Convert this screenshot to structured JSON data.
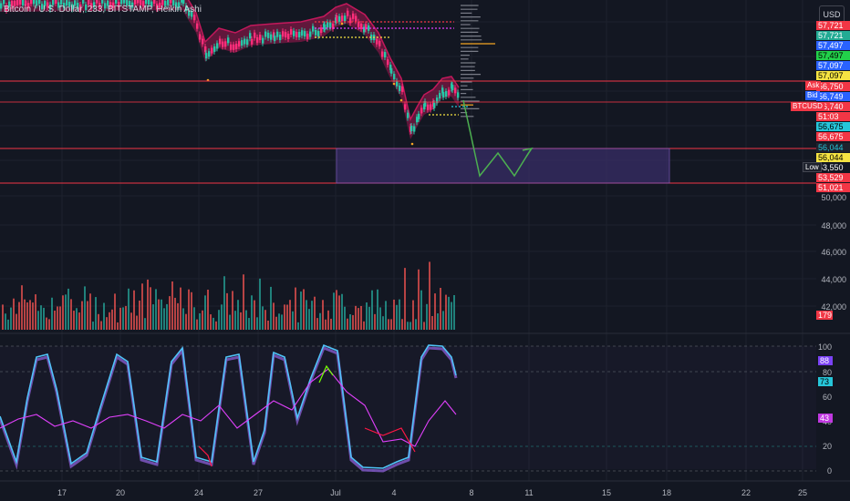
{
  "header": {
    "symbol_title": "Bitcoin / U.S. Dollar, 233, BITSTAMP, Heikin Ashi",
    "currency_button": "USD"
  },
  "price_tags": [
    {
      "label": "57,721",
      "bg": "#f23645",
      "fg": "#ffffff",
      "y": 57721
    },
    {
      "label": "57,721",
      "bg": "#22ab94",
      "fg": "#ffffff",
      "y": 57721
    },
    {
      "label": "57,497",
      "bg": "#2962ff",
      "fg": "#ffffff",
      "y": 57497
    },
    {
      "label": "57,497",
      "bg": "#22d14a",
      "fg": "#000000",
      "y": 57497
    },
    {
      "label": "57,097",
      "bg": "#2962ff",
      "fg": "#ffffff",
      "y": 57097
    },
    {
      "label": "57,097",
      "bg": "#f5e342",
      "fg": "#000000",
      "y": 57097
    },
    {
      "label": "56,750",
      "bg": "#f23645",
      "fg": "#ffffff",
      "y": 56750
    },
    {
      "label": "56,749",
      "bg": "#2962ff",
      "fg": "#ffffff",
      "y": 56749
    },
    {
      "label": "56,740",
      "bg": "#f23645",
      "fg": "#ffffff",
      "y": 56740
    },
    {
      "label": "51:03",
      "bg": "#f23645",
      "fg": "#ffffff",
      "y": 56600
    },
    {
      "label": "56,675",
      "bg": "#26c6da",
      "fg": "#000000",
      "y": 56675
    },
    {
      "label": "56,675",
      "bg": "#f23645",
      "fg": "#ffffff",
      "y": 56675
    },
    {
      "label": "56,044",
      "bg": "#1e222d",
      "fg": "#26c6da",
      "y": 56044
    },
    {
      "label": "56,044",
      "bg": "#f5e342",
      "fg": "#000000",
      "y": 56044
    },
    {
      "label": "53,550",
      "bg": "#131722",
      "fg": "#ffffff",
      "y": 53550
    },
    {
      "label": "53,529",
      "bg": "#f23645",
      "fg": "#ffffff",
      "y": 53529
    },
    {
      "label": "51,021",
      "bg": "#f23645",
      "fg": "#ffffff",
      "y": 51021
    }
  ],
  "side_tags": {
    "ask": "Ask",
    "bid": "Bid",
    "symbol": "BTCUSD",
    "low": "Low"
  },
  "price_axis": [
    "50,000",
    "48,000",
    "46,000",
    "44,000",
    "42,000"
  ],
  "volume_tag": "179",
  "oscillator_axis": [
    "100",
    "80",
    "60",
    "40",
    "20",
    "0"
  ],
  "oscillator_tags": [
    {
      "label": "88",
      "bg": "#7b42f6",
      "fg": "#ffffff"
    },
    {
      "label": "73",
      "bg": "#26c6da",
      "fg": "#000000"
    },
    {
      "label": "43",
      "bg": "#c038e0",
      "fg": "#ffffff"
    }
  ],
  "date_axis": [
    "17",
    "20",
    "24",
    "27",
    "Jul",
    "4",
    "8",
    "11",
    "15",
    "18",
    "22",
    "25"
  ],
  "colors": {
    "bg": "#131722",
    "bull": "#26c6a6",
    "bear": "#ef5350",
    "band": "#c2185b",
    "box": "#3a2f6b",
    "hline": "#f23645",
    "stoch_k": "#4fc3f7",
    "stoch_d": "#7e57c2",
    "rsi": "#e040fb",
    "projection": "#4caf50"
  },
  "chart_data": {
    "type": "candlestick",
    "price_levels": {
      "resistance": 56750,
      "support_top": 53550,
      "support_bottom": 51021
    },
    "volume_max": 46000,
    "oscillator": {
      "range": [
        0,
        100
      ],
      "k_last": 88,
      "d_last": 73,
      "rsi_last": 43
    }
  }
}
